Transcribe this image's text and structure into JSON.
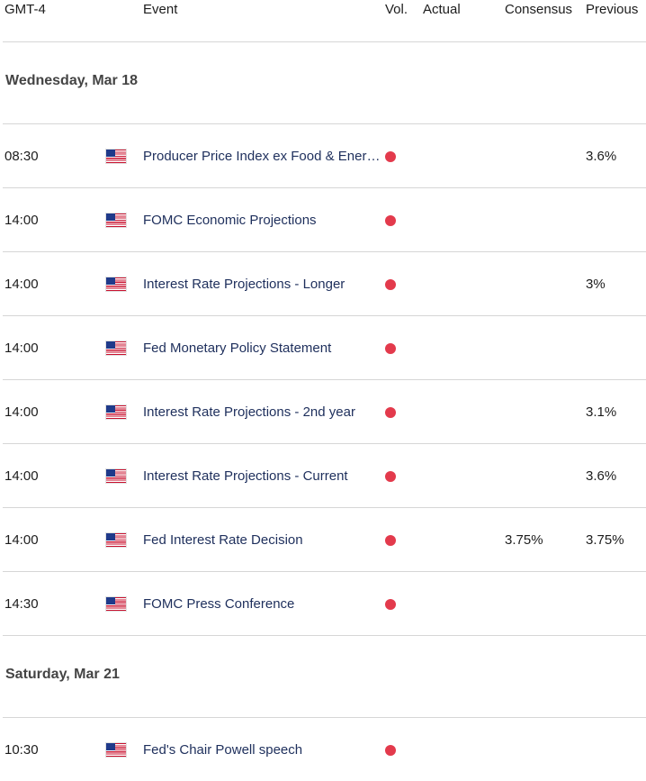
{
  "header": {
    "tz": "GMT-4",
    "event": "Event",
    "vol": "Vol.",
    "actual": "Actual",
    "consensus": "Consensus",
    "previous": "Previous"
  },
  "colors": {
    "vol_high": "#e33a4c",
    "event_text": "#1e2f5c"
  },
  "days": [
    {
      "label": "Wednesday, Mar 18",
      "events": [
        {
          "time": "08:30",
          "flag": "us-flag",
          "name": "Producer Price Index ex Food & Energ…",
          "vol": "high",
          "actual": "",
          "consensus": "",
          "previous": "3.6%"
        },
        {
          "time": "14:00",
          "flag": "us-flag",
          "name": "FOMC Economic Projections",
          "vol": "high",
          "actual": "",
          "consensus": "",
          "previous": ""
        },
        {
          "time": "14:00",
          "flag": "us-flag",
          "name": "Interest Rate Projections - Longer",
          "vol": "high",
          "actual": "",
          "consensus": "",
          "previous": "3%"
        },
        {
          "time": "14:00",
          "flag": "us-flag",
          "name": "Fed Monetary Policy Statement",
          "vol": "high",
          "actual": "",
          "consensus": "",
          "previous": ""
        },
        {
          "time": "14:00",
          "flag": "us-flag",
          "name": "Interest Rate Projections - 2nd year",
          "vol": "high",
          "actual": "",
          "consensus": "",
          "previous": "3.1%"
        },
        {
          "time": "14:00",
          "flag": "us-flag",
          "name": "Interest Rate Projections - Current",
          "vol": "high",
          "actual": "",
          "consensus": "",
          "previous": "3.6%"
        },
        {
          "time": "14:00",
          "flag": "us-flag",
          "name": "Fed Interest Rate Decision",
          "vol": "high",
          "actual": "",
          "consensus": "3.75%",
          "previous": "3.75%"
        },
        {
          "time": "14:30",
          "flag": "us-flag",
          "name": "FOMC Press Conference",
          "vol": "high",
          "actual": "",
          "consensus": "",
          "previous": ""
        }
      ]
    },
    {
      "label": "Saturday, Mar 21",
      "events": [
        {
          "time": "10:30",
          "flag": "us-flag",
          "name": "Fed's Chair Powell speech",
          "vol": "high",
          "actual": "",
          "consensus": "",
          "previous": ""
        }
      ]
    }
  ]
}
